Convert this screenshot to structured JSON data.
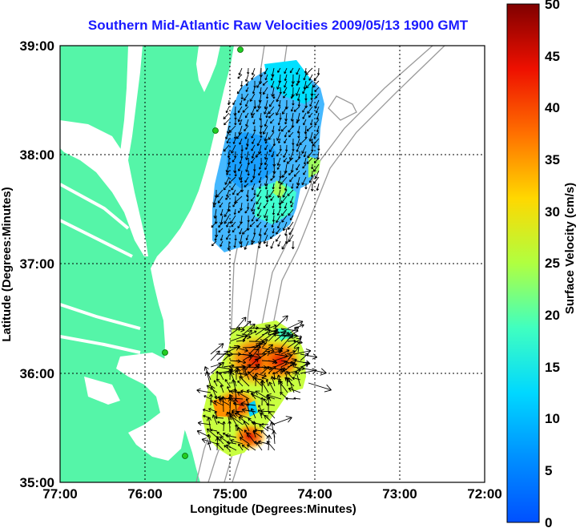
{
  "title": "Southern Mid-Atlantic Raw Velocities 2009/05/13 1900 GMT",
  "x_axis": {
    "label": "Longitude (Degrees:Minutes)",
    "ticks": [
      "77:00",
      "76:00",
      "75:00",
      "74:00",
      "73:00",
      "72:00"
    ]
  },
  "y_axis": {
    "label": "Latitude (Degrees:Minutes)",
    "ticks": [
      "39:00",
      "38:00",
      "37:00",
      "36:00",
      "35:00"
    ]
  },
  "colorbar": {
    "label": "Surface Velocity (cm/s)",
    "ticks": [
      "50",
      "45",
      "40",
      "35",
      "30",
      "25",
      "20",
      "15",
      "10",
      "5",
      "0"
    ],
    "min": 0,
    "max": 50,
    "colormap": "jet"
  },
  "map_extent": {
    "lon": [
      -77,
      -72
    ],
    "lat": [
      35,
      39
    ]
  },
  "colors": {
    "land": "#55f5a8",
    "ocean": "#ffffff",
    "bathymetry": "#9a9a9a",
    "grid": "#000000",
    "title": "#1a1aff",
    "station_marker": "#22cc22"
  },
  "grid": "dotted"
}
